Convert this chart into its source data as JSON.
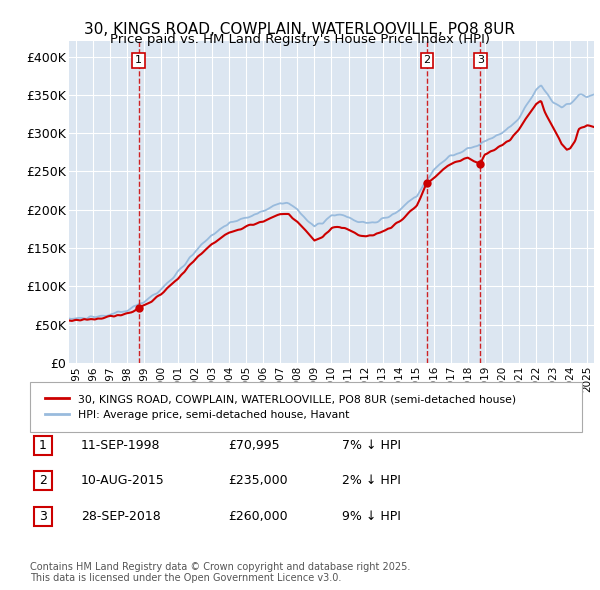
{
  "title": "30, KINGS ROAD, COWPLAIN, WATERLOOVILLE, PO8 8UR",
  "subtitle": "Price paid vs. HM Land Registry's House Price Index (HPI)",
  "ylim": [
    0,
    420000
  ],
  "xlim": [
    1994.6,
    2025.4
  ],
  "yticks": [
    0,
    50000,
    100000,
    150000,
    200000,
    250000,
    300000,
    350000,
    400000
  ],
  "ytick_labels": [
    "£0",
    "£50K",
    "£100K",
    "£150K",
    "£200K",
    "£250K",
    "£300K",
    "£350K",
    "£400K"
  ],
  "xticks": [
    1995,
    1996,
    1997,
    1998,
    1999,
    2000,
    2001,
    2002,
    2003,
    2004,
    2005,
    2006,
    2007,
    2008,
    2009,
    2010,
    2011,
    2012,
    2013,
    2014,
    2015,
    2016,
    2017,
    2018,
    2019,
    2020,
    2021,
    2022,
    2023,
    2024,
    2025
  ],
  "plot_bg_color": "#dce6f1",
  "grid_color": "#ffffff",
  "line_color_red": "#cc0000",
  "line_color_blue": "#99bbdd",
  "sale_dates": [
    1998.69,
    2015.61,
    2018.74
  ],
  "sale_prices": [
    70995,
    235000,
    260000
  ],
  "sale_labels": [
    "1",
    "2",
    "3"
  ],
  "sale_date_strs": [
    "11-SEP-1998",
    "10-AUG-2015",
    "28-SEP-2018"
  ],
  "sale_price_strs": [
    "£70,995",
    "£235,000",
    "£260,000"
  ],
  "sale_hpi_strs": [
    "7% ↓ HPI",
    "2% ↓ HPI",
    "9% ↓ HPI"
  ],
  "legend_line1": "30, KINGS ROAD, COWPLAIN, WATERLOOVILLE, PO8 8UR (semi-detached house)",
  "legend_line2": "HPI: Average price, semi-detached house, Havant",
  "footer": "Contains HM Land Registry data © Crown copyright and database right 2025.\nThis data is licensed under the Open Government Licence v3.0."
}
